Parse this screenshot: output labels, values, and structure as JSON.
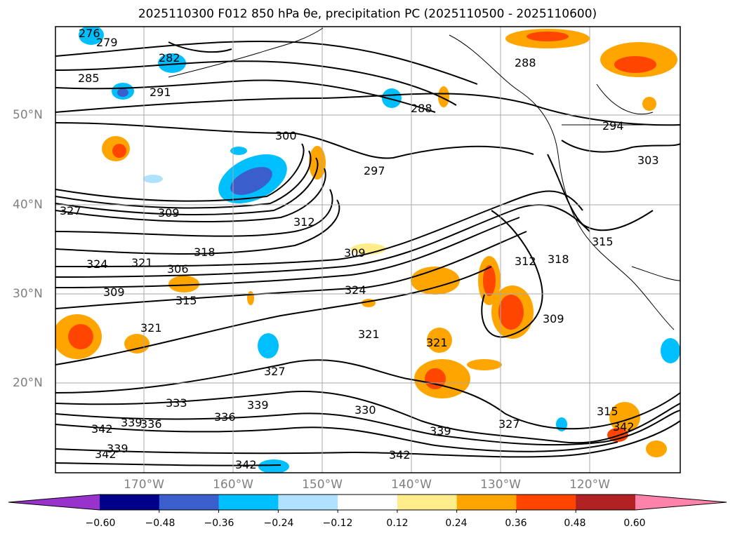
{
  "title": "2025110300 F012 850 hPa θe, precipitation PC (2025110500 - 2025110600)",
  "map": {
    "lat_labels": [
      "50°N",
      "40°N",
      "30°N",
      "20°N"
    ],
    "lon_labels": [
      "170°W",
      "160°W",
      "150°W",
      "140°W",
      "130°W",
      "120°W"
    ],
    "contour_labels": [
      "276",
      "279",
      "282",
      "285",
      "291",
      "288",
      "288",
      "294",
      "300",
      "297",
      "303",
      "306",
      "309",
      "312",
      "315",
      "318",
      "321",
      "324",
      "327",
      "330",
      "333",
      "336",
      "339",
      "342"
    ],
    "grid": true
  },
  "colorbar": {
    "ticks": [
      "−0.60",
      "−0.48",
      "−0.36",
      "−0.24",
      "−0.12",
      "0.12",
      "0.24",
      "0.36",
      "0.48",
      "0.60"
    ],
    "colors": [
      "#9932cc",
      "#00008b",
      "#3a5fcd",
      "#00bfff",
      "#b0e2ff",
      "#ffffff",
      "#ffec8b",
      "#ffa500",
      "#ff4500",
      "#b22222",
      "#ff82ab"
    ]
  },
  "chart_data": {
    "type": "heatmap",
    "title": "2025110300 F012 850 hPa θe, precipitation PC (2025110500 - 2025110600)",
    "variable_contours": "850 hPa θe",
    "variable_fill": "precipitation PC",
    "colorbar_levels": [
      -0.6,
      -0.48,
      -0.36,
      -0.24,
      -0.12,
      0.12,
      0.24,
      0.36,
      0.48,
      0.6
    ],
    "lon_ticks": [
      "170°W",
      "160°W",
      "150°W",
      "140°W",
      "130°W",
      "120°W"
    ],
    "lat_ticks": [
      "50°N",
      "40°N",
      "30°N",
      "20°N"
    ]
  }
}
